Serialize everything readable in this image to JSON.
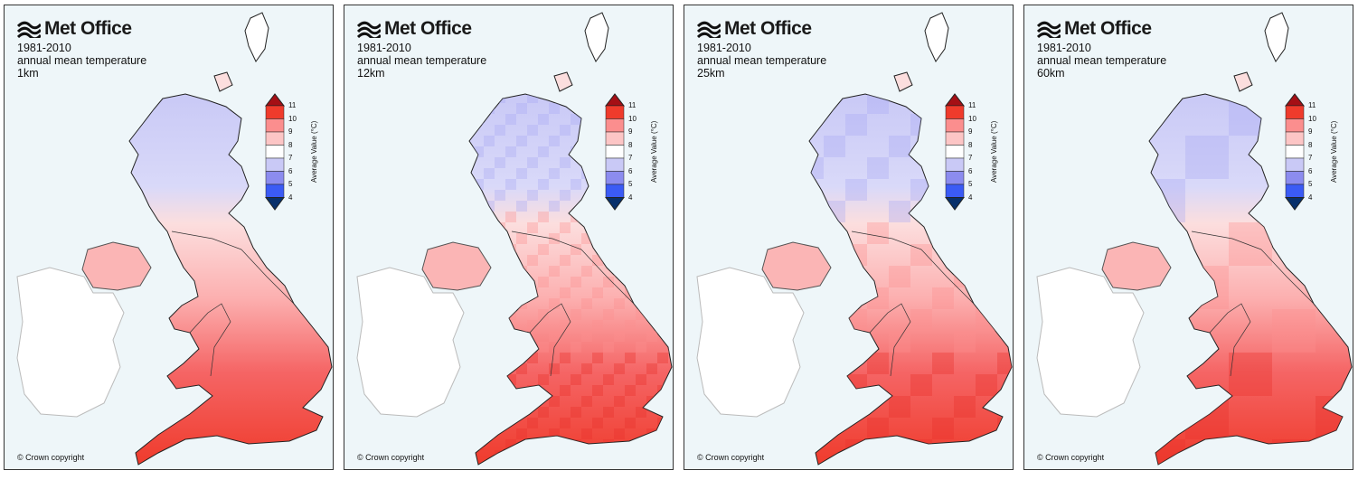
{
  "brand": "Met Office",
  "copyright": "© Crown copyright",
  "panels": [
    {
      "period": "1981-2010",
      "variable": "annual mean temperature",
      "resolution": "1km"
    },
    {
      "period": "1981-2010",
      "variable": "annual mean temperature",
      "resolution": "12km"
    },
    {
      "period": "1981-2010",
      "variable": "annual mean temperature",
      "resolution": "25km"
    },
    {
      "period": "1981-2010",
      "variable": "annual mean temperature",
      "resolution": "60km"
    }
  ],
  "legend": {
    "title": "Average Value (°C)",
    "ticks": [
      "11",
      "10",
      "9",
      "8",
      "7",
      "6",
      "5",
      "4"
    ],
    "colors": [
      "#a50f15",
      "#ef3b2c",
      "#fb8e8e",
      "#fcc5c5",
      "#ffffff",
      "#c9c9f6",
      "#8c8cef",
      "#3b5bf5",
      "#08306b"
    ]
  }
}
